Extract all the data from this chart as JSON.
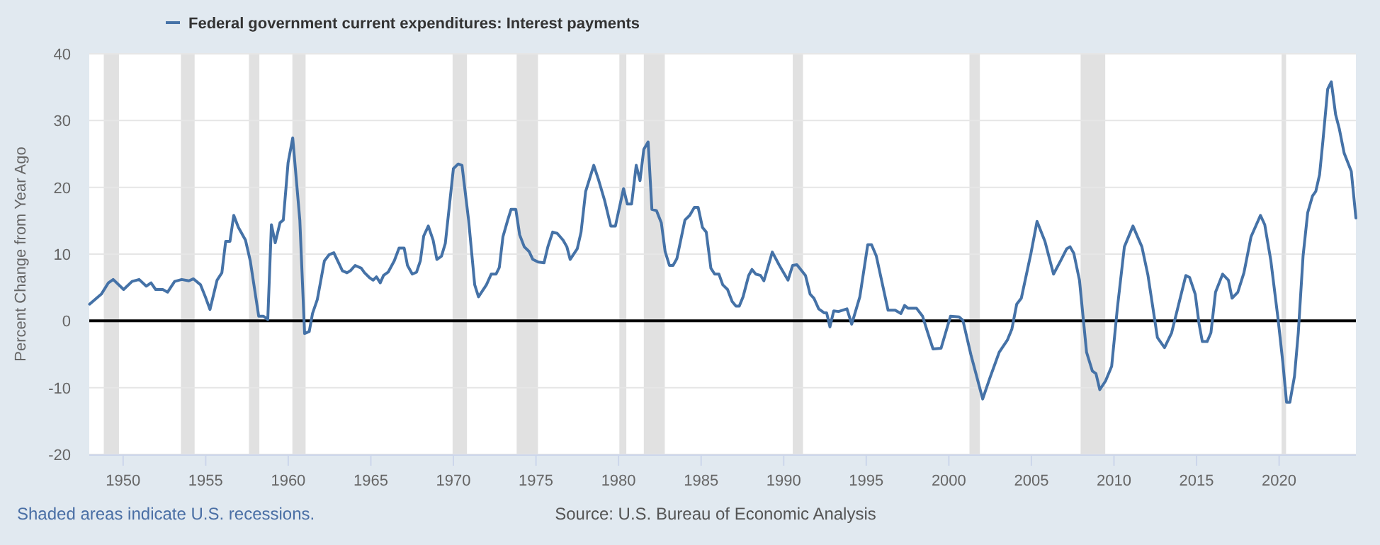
{
  "chart_data": {
    "type": "line",
    "ylabel": "Percent Change from Year Ago",
    "xlim": [
      1947.95,
      2024.65
    ],
    "xticks": [
      1950,
      1955,
      1960,
      1965,
      1970,
      1975,
      1980,
      1985,
      1990,
      1995,
      2000,
      2005,
      2010,
      2015,
      2020
    ],
    "ylim": [
      -20,
      40
    ],
    "yticks": [
      -20,
      -10,
      0,
      10,
      20,
      30,
      40
    ],
    "grid": "y",
    "legend": "top left",
    "series": [
      {
        "name": "Federal government current expenditures: Interest payments",
        "color": "#4572a7",
        "x": [
          1947.97,
          1948.68,
          1949.11,
          1949.4,
          1950.03,
          1950.54,
          1950.97,
          1951.4,
          1951.69,
          1951.97,
          1952.4,
          1952.69,
          1953.12,
          1953.55,
          1953.98,
          1954.26,
          1954.69,
          1954.98,
          1955.26,
          1955.69,
          1955.98,
          1956.21,
          1956.47,
          1956.7,
          1956.98,
          1957.41,
          1957.7,
          1958.21,
          1958.5,
          1958.76,
          1958.98,
          1959.21,
          1959.5,
          1959.7,
          1959.99,
          1960.27,
          1960.7,
          1960.99,
          1961.27,
          1961.47,
          1961.76,
          1962.19,
          1962.47,
          1962.76,
          1962.99,
          1963.28,
          1963.56,
          1963.76,
          1964.05,
          1964.42,
          1964.62,
          1964.91,
          1965.14,
          1965.34,
          1965.57,
          1965.77,
          1966.05,
          1966.42,
          1966.71,
          1967.02,
          1967.22,
          1967.51,
          1967.77,
          1968.0,
          1968.2,
          1968.48,
          1968.77,
          1969.0,
          1969.28,
          1969.51,
          1970.0,
          1970.29,
          1970.52,
          1970.92,
          1971.29,
          1971.52,
          1972.0,
          1972.29,
          1972.58,
          1972.78,
          1973.0,
          1973.29,
          1973.49,
          1973.78,
          1974.01,
          1974.29,
          1974.58,
          1974.81,
          1975.15,
          1975.49,
          1975.72,
          1976.01,
          1976.29,
          1976.64,
          1976.87,
          1977.07,
          1977.5,
          1977.73,
          1978.01,
          1978.5,
          1978.78,
          1979.16,
          1979.53,
          1979.81,
          1980.3,
          1980.53,
          1980.79,
          1981.07,
          1981.3,
          1981.53,
          1981.79,
          1982.02,
          1982.3,
          1982.59,
          1982.82,
          1983.08,
          1983.3,
          1983.53,
          1984.02,
          1984.31,
          1984.59,
          1984.82,
          1985.08,
          1985.31,
          1985.59,
          1985.82,
          1986.08,
          1986.31,
          1986.6,
          1986.88,
          1987.11,
          1987.31,
          1987.54,
          1987.88,
          1988.08,
          1988.31,
          1988.6,
          1988.8,
          1989.31,
          1989.74,
          1990.26,
          1990.54,
          1990.8,
          1991.32,
          1991.6,
          1991.83,
          1992.12,
          1992.46,
          1992.6,
          1992.8,
          1993.03,
          1993.32,
          1993.83,
          1994.12,
          1994.61,
          1995.09,
          1995.32,
          1995.61,
          1996.32,
          1996.75,
          1997.1,
          1997.32,
          1997.52,
          1998.04,
          1998.41,
          1998.7,
          1999.04,
          1999.53,
          2000.1,
          2000.62,
          2000.85,
          2001.33,
          2002.05,
          2002.48,
          2003.05,
          2003.54,
          2003.82,
          2004.11,
          2004.39,
          2004.97,
          2005.34,
          2005.82,
          2006.34,
          2006.77,
          2007.14,
          2007.34,
          2007.57,
          2007.91,
          2008.34,
          2008.69,
          2008.91,
          2009.14,
          2009.49,
          2009.86,
          2010.2,
          2010.63,
          2011.15,
          2011.69,
          2012.06,
          2012.63,
          2013.06,
          2013.49,
          2013.92,
          2014.35,
          2014.58,
          2014.92,
          2015.15,
          2015.35,
          2015.64,
          2015.87,
          2016.15,
          2016.58,
          2016.93,
          2017.15,
          2017.5,
          2017.87,
          2018.3,
          2018.87,
          2019.13,
          2019.5,
          2019.93,
          2020.22,
          2020.45,
          2020.65,
          2020.93,
          2021.16,
          2021.45,
          2021.73,
          2022.02,
          2022.22,
          2022.45,
          2022.65,
          2022.94,
          2023.16,
          2023.42,
          2023.65,
          2023.94,
          2024.37,
          2024.65
        ],
        "values": [
          2.5,
          4.0,
          5.7,
          6.2,
          4.7,
          5.9,
          6.2,
          5.2,
          5.7,
          4.7,
          4.7,
          4.3,
          5.9,
          6.2,
          6.0,
          6.3,
          5.4,
          3.6,
          1.7,
          6.1,
          7.2,
          11.9,
          11.9,
          15.8,
          14.0,
          12.1,
          9.0,
          0.7,
          0.7,
          0.2,
          14.4,
          11.7,
          14.7,
          15.1,
          23.7,
          27.4,
          15.1,
          -1.9,
          -1.6,
          1.1,
          3.2,
          9.0,
          9.9,
          10.2,
          9.0,
          7.5,
          7.2,
          7.5,
          8.3,
          7.9,
          7.2,
          6.5,
          6.1,
          6.6,
          5.7,
          6.8,
          7.3,
          9.0,
          10.9,
          10.9,
          8.3,
          7.0,
          7.3,
          9.0,
          12.7,
          14.2,
          12.1,
          9.2,
          9.7,
          11.6,
          22.8,
          23.5,
          23.3,
          15.1,
          5.4,
          3.6,
          5.4,
          7.0,
          7.0,
          8.0,
          12.6,
          15.1,
          16.7,
          16.7,
          12.9,
          11.1,
          10.4,
          9.2,
          8.8,
          8.7,
          11.1,
          13.3,
          13.1,
          12.1,
          11.1,
          9.2,
          10.8,
          13.3,
          19.4,
          23.3,
          21.2,
          18.0,
          14.2,
          14.2,
          19.8,
          17.5,
          17.5,
          23.3,
          21.0,
          25.7,
          26.8,
          16.7,
          16.5,
          14.7,
          10.4,
          8.3,
          8.3,
          9.3,
          15.1,
          15.8,
          17.0,
          17.0,
          14.0,
          13.3,
          7.9,
          7.0,
          7.0,
          5.4,
          4.7,
          2.9,
          2.2,
          2.2,
          3.6,
          6.8,
          7.7,
          7.0,
          6.8,
          6.0,
          10.3,
          8.3,
          6.1,
          8.3,
          8.4,
          6.8,
          4.0,
          3.4,
          1.8,
          1.2,
          1.2,
          -0.9,
          1.5,
          1.4,
          1.8,
          -0.5,
          3.6,
          11.4,
          11.4,
          9.7,
          1.6,
          1.6,
          1.1,
          2.3,
          1.9,
          1.9,
          0.7,
          -1.6,
          -4.2,
          -4.1,
          0.7,
          0.6,
          0.1,
          -5.0,
          -11.7,
          -8.6,
          -4.7,
          -2.9,
          -1.2,
          2.5,
          3.4,
          10.1,
          14.9,
          11.9,
          7.0,
          9.0,
          10.8,
          11.1,
          10.1,
          6.1,
          -4.7,
          -7.5,
          -7.9,
          -10.3,
          -9.0,
          -6.8,
          1.8,
          11.1,
          14.2,
          11.1,
          6.8,
          -2.5,
          -4.0,
          -1.8,
          2.5,
          6.8,
          6.5,
          4.0,
          -0.4,
          -3.1,
          -3.1,
          -1.8,
          4.3,
          7.0,
          6.1,
          3.4,
          4.3,
          7.2,
          12.6,
          15.8,
          14.4,
          9.0,
          0.4,
          -6.1,
          -12.2,
          -12.2,
          -8.3,
          -1.8,
          9.7,
          16.2,
          18.7,
          19.4,
          21.9,
          26.9,
          34.7,
          35.8,
          30.9,
          28.7,
          25.1,
          22.4,
          15.4
        ]
      }
    ],
    "bands": [
      {
        "axis": "x",
        "from": 1948.83,
        "to": 1949.75,
        "color": "#e1e1e1"
      },
      {
        "axis": "x",
        "from": 1953.5,
        "to": 1954.33,
        "color": "#e1e1e1"
      },
      {
        "axis": "x",
        "from": 1957.62,
        "to": 1958.25,
        "color": "#e1e1e1"
      },
      {
        "axis": "x",
        "from": 1960.25,
        "to": 1961.05,
        "color": "#e1e1e1"
      },
      {
        "axis": "x",
        "from": 1969.95,
        "to": 1970.82,
        "color": "#e1e1e1"
      },
      {
        "axis": "x",
        "from": 1973.83,
        "to": 1975.12,
        "color": "#e1e1e1"
      },
      {
        "axis": "x",
        "from": 1980.05,
        "to": 1980.47,
        "color": "#e1e1e1"
      },
      {
        "axis": "x",
        "from": 1981.53,
        "to": 1982.8,
        "color": "#e1e1e1"
      },
      {
        "axis": "x",
        "from": 1990.55,
        "to": 1991.17,
        "color": "#e1e1e1"
      },
      {
        "axis": "x",
        "from": 2001.25,
        "to": 2001.88,
        "color": "#e1e1e1"
      },
      {
        "axis": "x",
        "from": 2007.98,
        "to": 2009.47,
        "color": "#e1e1e1"
      },
      {
        "axis": "x",
        "from": 2020.15,
        "to": 2020.42,
        "color": "#e1e1e1"
      }
    ],
    "ref_lines": [
      {
        "axis": "y",
        "value": 0,
        "color": "#000000"
      }
    ],
    "annotations": [
      "Shaded areas indicate U.S. recessions.",
      "Source: U.S. Bureau of Economic Analysis"
    ]
  }
}
